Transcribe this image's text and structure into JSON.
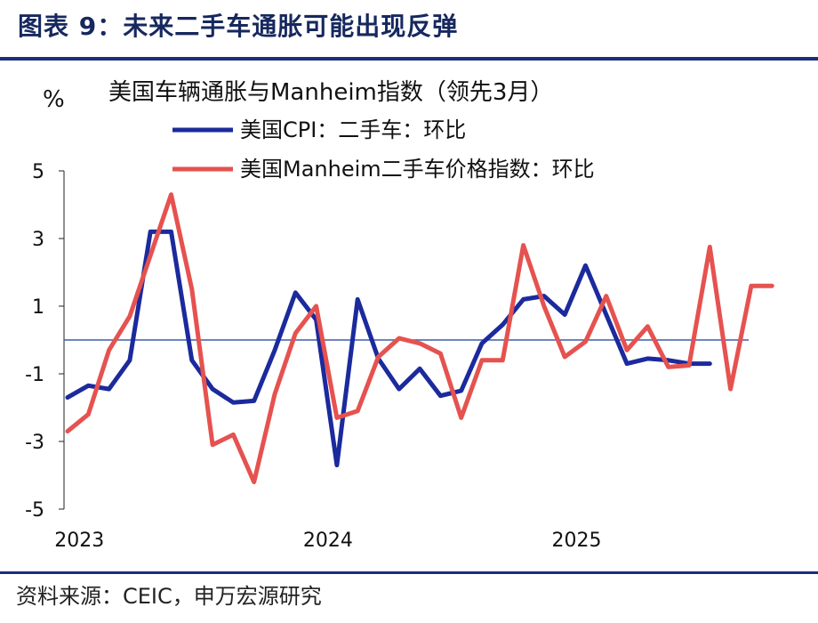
{
  "figure": {
    "title": "图表 9：未来二手车通胀可能出现反弹",
    "source": "资料来源：CEIC，申万宏源研究",
    "accent_color": "#1b2f7a"
  },
  "chart_data": {
    "type": "line",
    "title": "美国车辆通胀与Manheim指数（领先3月）",
    "ylabel": "%",
    "ylim": [
      -5,
      5
    ],
    "yticks": [
      -5,
      -3,
      -1,
      1,
      3,
      5
    ],
    "xticks": [
      "2023",
      "2024",
      "2025"
    ],
    "zero_line": 0,
    "grid": false,
    "legend_position": "top-center",
    "series": [
      {
        "name": "美国CPI：二手车：环比",
        "color": "#1b2a9c",
        "x": [
          "2022-12",
          "2023-01",
          "2023-02",
          "2023-03",
          "2023-04",
          "2023-05",
          "2023-06",
          "2023-07",
          "2023-08",
          "2023-09",
          "2023-10",
          "2023-11",
          "2023-12",
          "2024-01",
          "2024-02",
          "2024-03",
          "2024-04",
          "2024-05",
          "2024-06",
          "2024-07",
          "2024-08",
          "2024-09",
          "2024-10",
          "2024-11",
          "2024-12",
          "2025-01",
          "2025-02",
          "2025-03",
          "2025-04",
          "2025-05",
          "2025-06",
          "2025-07"
        ],
        "values": [
          -1.7,
          -1.35,
          -1.45,
          -0.6,
          3.2,
          3.2,
          -0.6,
          -1.45,
          -1.85,
          -1.8,
          -0.3,
          1.4,
          0.6,
          -3.7,
          1.2,
          -0.55,
          -1.45,
          -0.85,
          -1.65,
          -1.5,
          -0.1,
          0.45,
          1.2,
          1.3,
          0.75,
          2.2,
          0.75,
          -0.7,
          -0.55,
          -0.6,
          -0.7,
          -0.7
        ]
      },
      {
        "name": "美国Manheim二手车价格指数：环比",
        "color": "#e5524f",
        "x": [
          "2022-12",
          "2023-01",
          "2023-02",
          "2023-03",
          "2023-04",
          "2023-05",
          "2023-06",
          "2023-07",
          "2023-08",
          "2023-09",
          "2023-10",
          "2023-11",
          "2023-12",
          "2024-01",
          "2024-02",
          "2024-03",
          "2024-04",
          "2024-05",
          "2024-06",
          "2024-07",
          "2024-08",
          "2024-09",
          "2024-10",
          "2024-11",
          "2024-12",
          "2025-01",
          "2025-02",
          "2025-03",
          "2025-04",
          "2025-05",
          "2025-06",
          "2025-07",
          "2025-08",
          "2025-09",
          "2025-10"
        ],
        "values": [
          -2.7,
          -2.2,
          -0.3,
          0.7,
          2.5,
          4.3,
          1.5,
          -3.1,
          -2.8,
          -4.2,
          -1.6,
          0.2,
          1.0,
          -2.3,
          -2.1,
          -0.5,
          0.05,
          -0.1,
          -0.4,
          -2.3,
          -0.6,
          -0.6,
          2.8,
          1.0,
          -0.5,
          -0.05,
          1.3,
          -0.3,
          0.4,
          -0.8,
          -0.75,
          2.75,
          -1.45,
          1.6,
          1.6
        ]
      }
    ]
  }
}
